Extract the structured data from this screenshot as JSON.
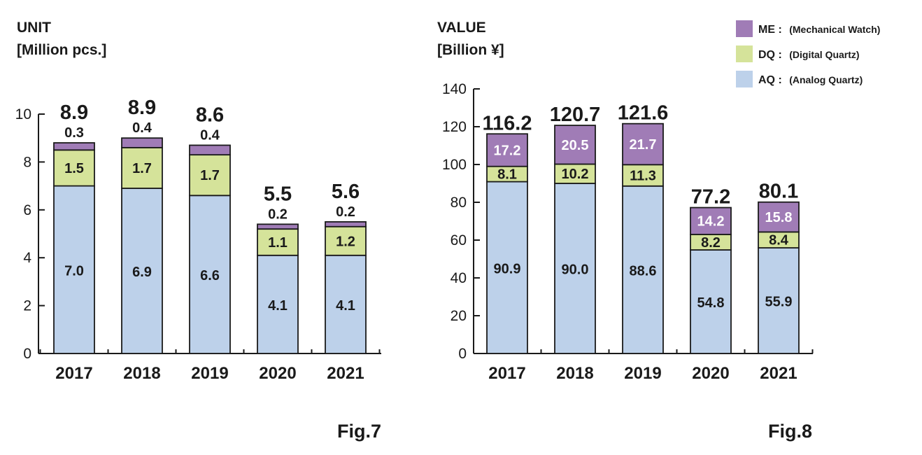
{
  "colors": {
    "ME": "#a07cb6",
    "DQ": "#d5e39a",
    "AQ": "#bdd1ea",
    "axis": "#1a1a1a"
  },
  "legend": [
    {
      "key": "ME",
      "label": "ME :",
      "desc": "(Mechanical Watch)"
    },
    {
      "key": "DQ",
      "label": "DQ :",
      "desc": "(Digital Quartz)"
    },
    {
      "key": "AQ",
      "label": "AQ :",
      "desc": "(Analog Quartz)"
    }
  ],
  "chart_data": [
    {
      "type": "bar",
      "stacked": true,
      "title": "UNIT",
      "ylabel": "[Million pcs.]",
      "caption": "Fig.7",
      "categories": [
        "2017",
        "2018",
        "2019",
        "2020",
        "2021"
      ],
      "ylim": [
        0,
        10
      ],
      "yticks": [
        0,
        2,
        4,
        6,
        8,
        10
      ],
      "series": [
        {
          "name": "AQ",
          "values": [
            7.0,
            6.9,
            6.6,
            4.1,
            4.1
          ],
          "labels": [
            "7.0",
            "6.9",
            "6.6",
            "4.1",
            "4.1"
          ]
        },
        {
          "name": "DQ",
          "values": [
            1.5,
            1.7,
            1.7,
            1.1,
            1.2
          ],
          "labels": [
            "1.5",
            "1.7",
            "1.7",
            "1.1",
            "1.2"
          ]
        },
        {
          "name": "ME",
          "values": [
            0.3,
            0.4,
            0.4,
            0.2,
            0.2
          ],
          "labels": [
            "0.3",
            "0.4",
            "0.4",
            "0.2",
            "0.2"
          ]
        }
      ],
      "totals": [
        "8.9",
        "8.9",
        "8.6",
        "5.5",
        "5.6"
      ]
    },
    {
      "type": "bar",
      "stacked": true,
      "title": "VALUE",
      "ylabel": "[Billion ¥]",
      "caption": "Fig.8",
      "categories": [
        "2017",
        "2018",
        "2019",
        "2020",
        "2021"
      ],
      "ylim": [
        0,
        140
      ],
      "yticks": [
        0,
        20,
        40,
        60,
        80,
        100,
        120,
        140
      ],
      "series": [
        {
          "name": "AQ",
          "values": [
            90.9,
            90.0,
            88.6,
            54.8,
            55.9
          ],
          "labels": [
            "90.9",
            "90.0",
            "88.6",
            "54.8",
            "55.9"
          ]
        },
        {
          "name": "DQ",
          "values": [
            8.1,
            10.2,
            11.3,
            8.2,
            8.4
          ],
          "labels": [
            "8.1",
            "10.2",
            "11.3",
            "8.2",
            "8.4"
          ]
        },
        {
          "name": "ME",
          "values": [
            17.2,
            20.5,
            21.7,
            14.2,
            15.8
          ],
          "labels": [
            "17.2",
            "20.5",
            "21.7",
            "14.2",
            "15.8"
          ]
        }
      ],
      "totals": [
        "116.2",
        "120.7",
        "121.6",
        "77.2",
        "80.1"
      ]
    }
  ]
}
